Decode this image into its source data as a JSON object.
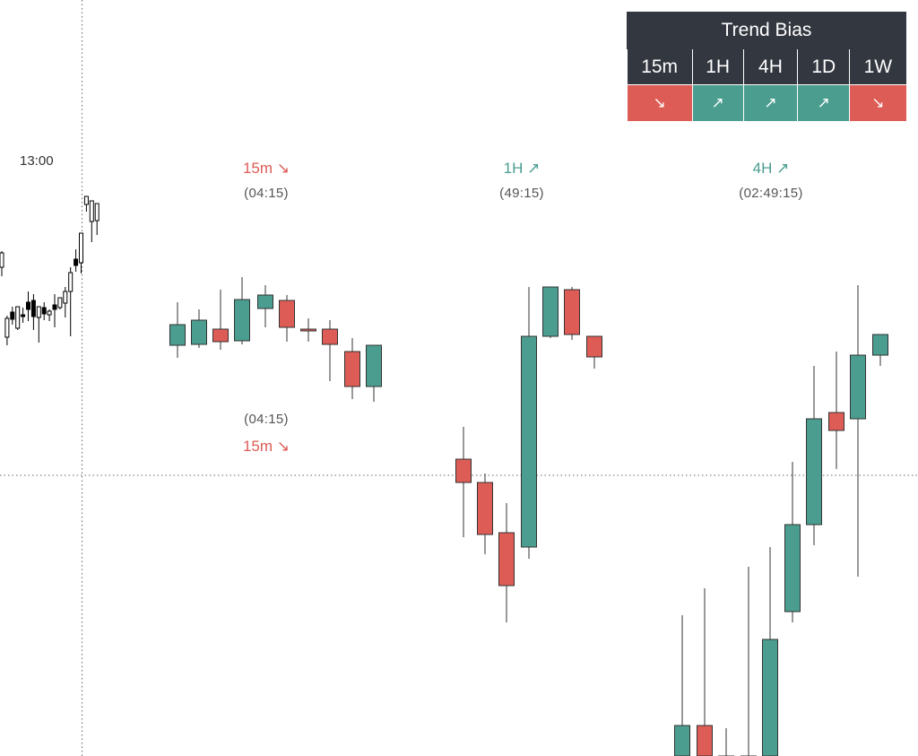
{
  "colors": {
    "up": "#4a9d8f",
    "down": "#dd5c55",
    "black": "#000000",
    "header_bg": "#333740"
  },
  "time_label": "13:00",
  "trend_bias": {
    "title": "Trend Bias",
    "timeframes": [
      {
        "label": "15m",
        "arrow": "↘",
        "direction": "down"
      },
      {
        "label": "1H",
        "arrow": "↗",
        "direction": "up"
      },
      {
        "label": "4H",
        "arrow": "↗",
        "direction": "up"
      },
      {
        "label": "1D",
        "arrow": "↗",
        "direction": "up"
      },
      {
        "label": "1W",
        "arrow": "↘",
        "direction": "down"
      }
    ]
  },
  "annotations": [
    {
      "label": "15m ↘",
      "time": "(04:15)",
      "direction": "down"
    },
    {
      "label": "1H ↗",
      "time": "(49:15)",
      "direction": "up"
    },
    {
      "label": "4H ↗",
      "time": "(02:49:15)",
      "direction": "up"
    },
    {
      "label": "15m ↘",
      "time": "(04:15)",
      "direction": "down"
    }
  ],
  "chart_data": {
    "type": "candlestick",
    "y_unit": "price (relative, unlabeled)",
    "current_price_line": 530,
    "mini_series": [
      {
        "o": 688,
        "h": 670,
        "c": 672,
        "l": 698
      },
      {
        "o": 676,
        "h": 652,
        "c": 655,
        "l": 685
      },
      {
        "o": 648,
        "h": 642,
        "c": 656,
        "l": 662
      },
      {
        "o": 666,
        "h": 642,
        "c": 642,
        "l": 668
      },
      {
        "o": 651,
        "h": 643,
        "c": 653,
        "l": 660
      },
      {
        "o": 637,
        "h": 625,
        "c": 645,
        "l": 658
      },
      {
        "o": 635,
        "h": 628,
        "c": 653,
        "l": 668
      },
      {
        "o": 654,
        "h": 645,
        "c": 642,
        "l": 682
      },
      {
        "o": 643,
        "h": 637,
        "c": 650,
        "l": 657
      },
      {
        "o": 651,
        "h": 645,
        "c": 647,
        "l": 658
      },
      {
        "o": 640,
        "h": 628,
        "c": 645,
        "l": 665
      },
      {
        "o": 643,
        "h": 639,
        "c": 632,
        "l": 645
      },
      {
        "o": 638,
        "h": 620,
        "c": 625,
        "l": 654
      },
      {
        "o": 625,
        "h": 598,
        "c": 604,
        "l": 675
      },
      {
        "o": 589,
        "h": 578,
        "c": 596,
        "l": 603
      },
      {
        "o": 593,
        "h": 580,
        "c": 560,
        "l": 605
      },
      {
        "o": 528,
        "h": 522,
        "c": 519,
        "l": 536
      },
      {
        "o": 547,
        "h": 542,
        "c": 524,
        "l": 570
      },
      {
        "o": 546,
        "h": 528,
        "c": 527,
        "l": 562
      }
    ],
    "series_15m": [
      {
        "o": 530,
        "h": 482,
        "c": 507,
        "l": 544
      },
      {
        "o": 529,
        "h": 490,
        "c": 502,
        "l": 533
      },
      {
        "o": 512,
        "h": 468,
        "c": 526,
        "l": 535
      },
      {
        "o": 525,
        "h": 454,
        "c": 479,
        "l": 529
      },
      {
        "o": 489,
        "h": 463,
        "c": 474,
        "l": 510
      },
      {
        "o": 480,
        "h": 474,
        "c": 510,
        "l": 526
      },
      {
        "o": 512,
        "h": 500,
        "c": 514,
        "l": 526
      },
      {
        "o": 512,
        "h": 502,
        "c": 529,
        "l": 570
      },
      {
        "o": 537,
        "h": 522,
        "c": 576,
        "l": 590
      },
      {
        "o": 576,
        "h": 530,
        "c": 530,
        "l": 593
      }
    ],
    "series_1h": [
      {
        "o": 624,
        "h": 588,
        "c": 650,
        "l": 711
      },
      {
        "o": 650,
        "h": 640,
        "c": 708,
        "l": 730
      },
      {
        "o": 706,
        "h": 673,
        "c": 765,
        "l": 806
      },
      {
        "o": 765,
        "h": 475,
        "c": 530,
        "l": 778
      },
      {
        "o": 530,
        "h": 476,
        "c": 475,
        "l": 532
      },
      {
        "o": 478,
        "h": 475,
        "c": 528,
        "l": 534
      },
      {
        "o": 530,
        "h": 530,
        "c": 553,
        "l": 566
      }
    ],
    "series_4h": [
      {
        "o": 1000,
        "h": 843,
        "c": 966,
        "l": 1050
      },
      {
        "o": 966,
        "h": 813,
        "c": 1000,
        "l": 1050
      },
      {
        "o": 1000,
        "h": 969,
        "c": 1000,
        "l": 1050
      },
      {
        "o": 1000,
        "h": 789,
        "c": 1000,
        "l": 1050
      },
      {
        "o": 1000,
        "h": 767,
        "c": 870,
        "l": 1050
      },
      {
        "o": 839,
        "h": 672,
        "c": 742,
        "l": 851
      },
      {
        "o": 742,
        "h": 565,
        "c": 624,
        "l": 765
      },
      {
        "o": 617,
        "h": 549,
        "c": 637,
        "l": 680
      },
      {
        "o": 624,
        "h": 475,
        "c": 553,
        "l": 800
      },
      {
        "o": 553,
        "h": 530,
        "c": 530,
        "l": 565
      }
    ]
  }
}
